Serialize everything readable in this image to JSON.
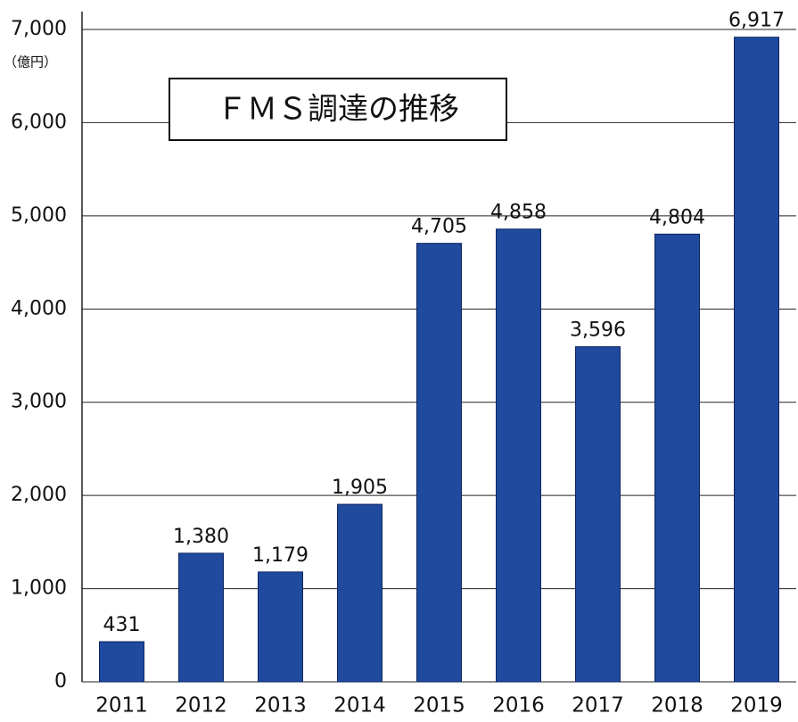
{
  "chart_data": {
    "type": "bar",
    "title": "ＦＭＳ調達の推移",
    "y_unit": "（億円）",
    "categories": [
      "2011",
      "2012",
      "2013",
      "2014",
      "2015",
      "2016",
      "2017",
      "2018",
      "2019"
    ],
    "values": [
      431,
      1380,
      1179,
      1905,
      4705,
      4858,
      3596,
      4804,
      6917
    ],
    "value_labels": [
      "431",
      "1,380",
      "1,179",
      "1,905",
      "4,705",
      "4,858",
      "3,596",
      "4,804",
      "6,917"
    ],
    "color": "#1f4a9e",
    "ylim": [
      0,
      7000
    ],
    "yticks": [
      0,
      {
        "value": 1000,
        "label": "1,000"
      },
      {
        "value": 2000,
        "label": "2,000"
      },
      {
        "value": 3000,
        "label": "3,000"
      },
      {
        "value": 4000,
        "label": "4,000"
      },
      {
        "value": 5000,
        "label": "5,000"
      },
      {
        "value": 6000,
        "label": "6,000"
      },
      {
        "value": 7000,
        "label": "7,000"
      }
    ],
    "grid": true
  }
}
